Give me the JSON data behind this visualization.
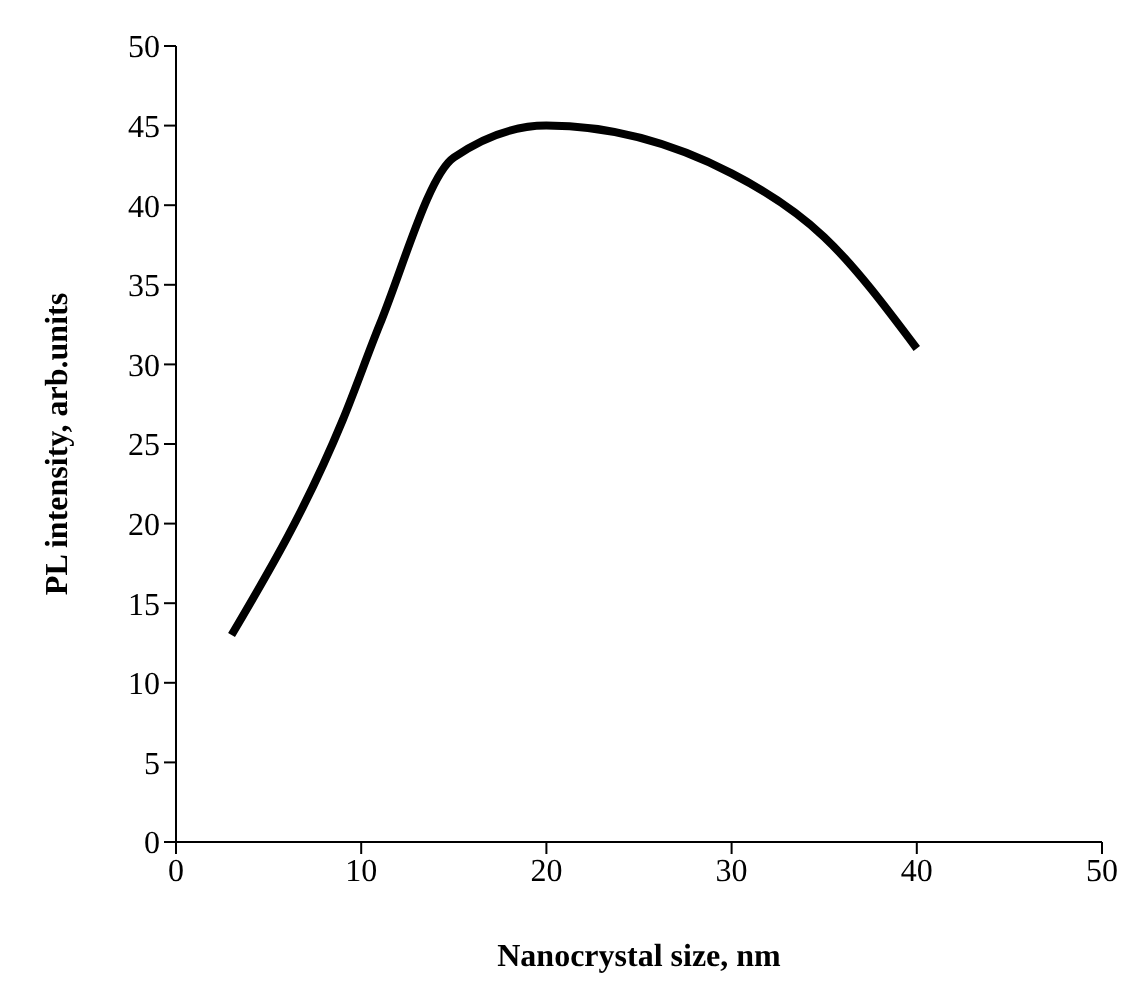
{
  "chart_data": {
    "type": "line",
    "xlabel": "Nanocrystal size, nm",
    "ylabel": "PL intensity, arb.units",
    "x": [
      3,
      9,
      11,
      15,
      20,
      30,
      35,
      40
    ],
    "series": [
      {
        "color": "#000000",
        "values": [
          13,
          26.5,
          32.5,
          43,
          45,
          42,
          38,
          31
        ]
      }
    ],
    "xlim": [
      0,
      50
    ],
    "xticks": [
      0,
      10,
      20,
      30,
      40,
      50
    ],
    "ylim": [
      0,
      50
    ],
    "yticks": [
      0,
      5,
      10,
      15,
      20,
      25,
      30,
      35,
      40,
      45,
      50
    ],
    "grid": false,
    "legend": false,
    "marker": "none",
    "line_style": "solid"
  }
}
